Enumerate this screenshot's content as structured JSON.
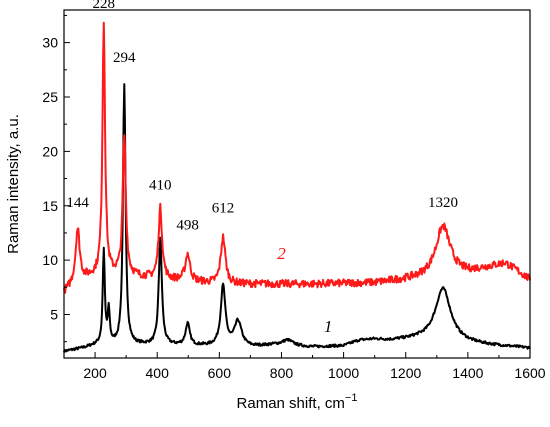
{
  "chart_data": {
    "type": "line",
    "xlabel": "Raman shift, cm",
    "xlabel_superscript": "−1",
    "ylabel": "Raman intensity, a.u.",
    "xlim": [
      100,
      1600
    ],
    "ylim": [
      1,
      33
    ],
    "x_ticks": [
      200,
      400,
      600,
      800,
      1000,
      1200,
      1400,
      1600
    ],
    "y_ticks": [
      5,
      10,
      15,
      20,
      25,
      30
    ],
    "grid": false,
    "series": [
      {
        "name": "1",
        "color": "#000000",
        "baseline": [
          [
            100,
            1.6
          ],
          [
            160,
            1.9
          ],
          [
            205,
            2.2
          ],
          [
            400,
            2.2
          ],
          [
            700,
            2.0
          ],
          [
            780,
            2.2
          ],
          [
            900,
            2.0
          ],
          [
            1000,
            2.1
          ],
          [
            1050,
            2.6
          ],
          [
            1100,
            2.7
          ],
          [
            1150,
            2.6
          ],
          [
            1240,
            2.7
          ],
          [
            1450,
            2.2
          ],
          [
            1600,
            1.9
          ]
        ],
        "peaks": [
          {
            "x": 228,
            "amp": 8.5,
            "w": 4
          },
          {
            "x": 244,
            "amp": 3.0,
            "w": 4
          },
          {
            "x": 294,
            "amp": 23.8,
            "w": 5
          },
          {
            "x": 410,
            "amp": 9.8,
            "w": 6
          },
          {
            "x": 498,
            "amp": 2.0,
            "w": 8
          },
          {
            "x": 612,
            "amp": 5.5,
            "w": 9
          },
          {
            "x": 660,
            "amp": 2.3,
            "w": 14
          },
          {
            "x": 820,
            "amp": 0.5,
            "w": 20
          },
          {
            "x": 1320,
            "amp": 4.9,
            "w": 30
          }
        ],
        "noise": 0.12
      },
      {
        "name": "2",
        "color": "#ff1a1a",
        "baseline": [
          [
            100,
            7.0
          ],
          [
            140,
            8.0
          ],
          [
            220,
            8.8
          ],
          [
            360,
            8.4
          ],
          [
            430,
            8.2
          ],
          [
            600,
            7.8
          ],
          [
            900,
            7.8
          ],
          [
            1100,
            7.9
          ],
          [
            1240,
            8.3
          ],
          [
            1400,
            8.8
          ],
          [
            1450,
            9.2
          ],
          [
            1520,
            9.7
          ],
          [
            1560,
            9.0
          ],
          [
            1600,
            8.2
          ]
        ],
        "peaks": [
          {
            "x": 144,
            "amp": 4.8,
            "w": 8
          },
          {
            "x": 228,
            "amp": 23.0,
            "w": 5
          },
          {
            "x": 294,
            "amp": 12.8,
            "w": 6
          },
          {
            "x": 410,
            "amp": 6.5,
            "w": 7
          },
          {
            "x": 498,
            "amp": 2.5,
            "w": 9
          },
          {
            "x": 612,
            "amp": 4.3,
            "w": 9
          },
          {
            "x": 1320,
            "amp": 4.6,
            "w": 28
          }
        ],
        "noise": 0.35
      }
    ],
    "annotations": [
      {
        "text": "228",
        "x": 228,
        "y": 33.2
      },
      {
        "text": "294",
        "x": 294,
        "y": 28.2
      },
      {
        "text": "144",
        "x": 144,
        "y": 14.9
      },
      {
        "text": "410",
        "x": 410,
        "y": 16.5
      },
      {
        "text": "498",
        "x": 498,
        "y": 12.8
      },
      {
        "text": "612",
        "x": 612,
        "y": 14.4
      },
      {
        "text": "1320",
        "x": 1320,
        "y": 14.9
      }
    ],
    "series_labels": [
      {
        "text": "2",
        "x": 800,
        "y": 10.1,
        "color": "#ff1a1a"
      },
      {
        "text": "1",
        "x": 950,
        "y": 3.4,
        "color": "#000000"
      }
    ]
  }
}
